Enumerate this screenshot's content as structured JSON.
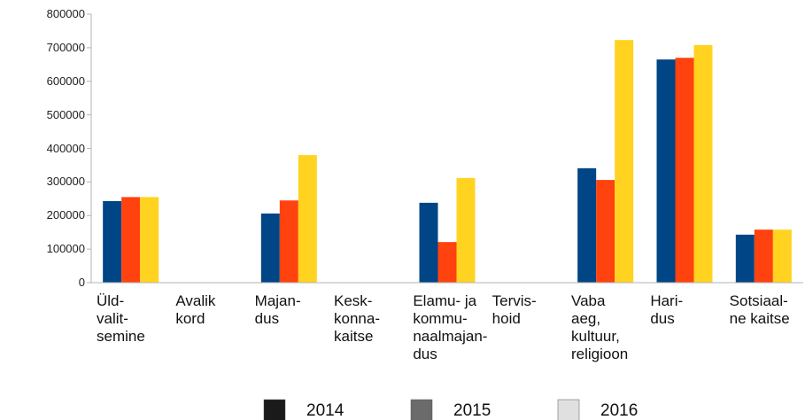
{
  "chart_data": {
    "type": "bar",
    "categories": [
      "Üld-\nvalit-\nsemine",
      "Avalik\nkord",
      "Majan-\ndus",
      "Kesk-\nkonna-\nkaitse",
      "Elamu- ja\nkommu-\nnaalmajan-\ndus",
      "Tervis-\nhoid",
      "Vaba\naeg,\nkultuur,\nreligioon",
      "Hari-\ndus",
      "Sotsiaal-\nne kaitse"
    ],
    "series": [
      {
        "name": "2014",
        "color": "#004586",
        "legend_color": "#1a1a1a",
        "values": [
          243000,
          0,
          206000,
          0,
          238000,
          0,
          341000,
          665000,
          143000
        ]
      },
      {
        "name": "2015",
        "color": "#ff420e",
        "legend_color": "#6b6b6b",
        "values": [
          255000,
          0,
          245000,
          0,
          121000,
          0,
          306000,
          670000,
          158000
        ]
      },
      {
        "name": "2016",
        "color": "#ffd320",
        "legend_color": "#e0e0e0",
        "values": [
          255000,
          0,
          380000,
          0,
          312000,
          0,
          723000,
          708000,
          158000
        ]
      }
    ],
    "ylim": [
      0,
      800000
    ],
    "yticks": [
      0,
      100000,
      200000,
      300000,
      400000,
      500000,
      600000,
      700000,
      800000
    ],
    "grid": false,
    "legend": "bottom"
  }
}
